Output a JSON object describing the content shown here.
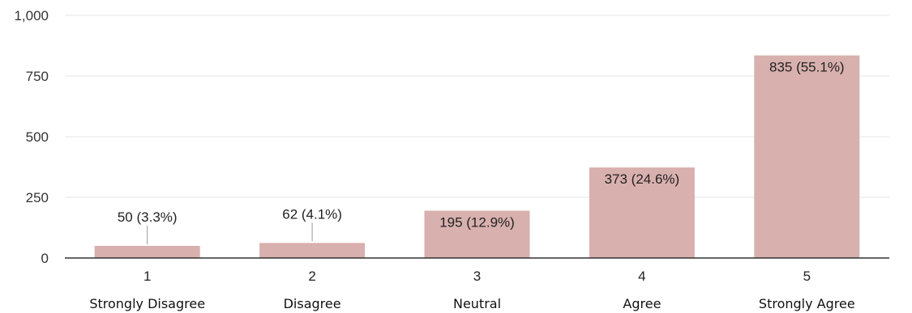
{
  "chart_data": {
    "type": "bar",
    "categories": [
      "1",
      "2",
      "3",
      "4",
      "5"
    ],
    "category_descriptions": [
      "Strongly Disagree",
      "Disagree",
      "Neutral",
      "Agree",
      "Strongly Agree"
    ],
    "values": [
      50,
      62,
      195,
      373,
      835
    ],
    "data_labels": [
      "50 (3.3%)",
      "62 (4.1%)",
      "195 (12.9%)",
      "373 (24.6%)",
      "835 (55.1%)"
    ],
    "title": "",
    "xlabel": "",
    "ylabel": "",
    "ylim": [
      0,
      1000
    ],
    "yticks": [
      0,
      250,
      500,
      750,
      1000
    ],
    "ytick_labels": [
      "0",
      "250",
      "500",
      "750",
      "1,000"
    ],
    "grid": true,
    "bar_color": "#d8b0ae",
    "grid_color": "#e6e6e6",
    "axis_color": "#333333"
  }
}
